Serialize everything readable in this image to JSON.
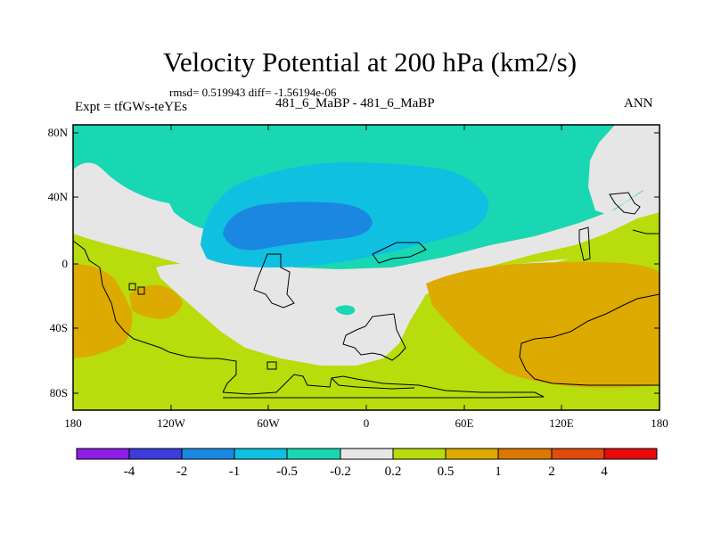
{
  "plot": {
    "title": "Velocity Potential at 200 hPa (km2/s)",
    "stats": "rmsd= 0.519943 diff= -1.56194e-06",
    "left_label": "Expt = tfGWs-teYEs",
    "center_label": "481_6_MaBP - 481_6_MaBP",
    "right_label": "ANN",
    "projection": "cylindrical-equidistant",
    "lon_range": [
      -180,
      180
    ],
    "lat_range": [
      -90,
      90
    ]
  },
  "axes": {
    "y_ticks": [
      "80N",
      "40N",
      "0",
      "40S",
      "80S"
    ],
    "x_ticks": [
      "180",
      "120W",
      "60W",
      "0",
      "60E",
      "120E",
      "180"
    ]
  },
  "colorbar": {
    "labels": [
      "-4",
      "-2",
      "-1",
      "-0.5",
      "-0.2",
      "0.2",
      "0.5",
      "1",
      "2",
      "4"
    ],
    "colors": [
      "#8e1ee6",
      "#3c3cdc",
      "#1a88e0",
      "#10c0e0",
      "#1ad7b4",
      "#e6e6e6",
      "#b8dc0c",
      "#dcaa00",
      "#dc7800",
      "#e04a0a",
      "#e60a0a"
    ]
  },
  "field_colors": {
    "strong_negative": "#1a88e0",
    "negative": "#10c0e0",
    "weak_negative": "#1ad7b4",
    "neutral": "#e6e6e6",
    "weak_positive": "#b8dc0c",
    "positive": "#dcaa00"
  }
}
